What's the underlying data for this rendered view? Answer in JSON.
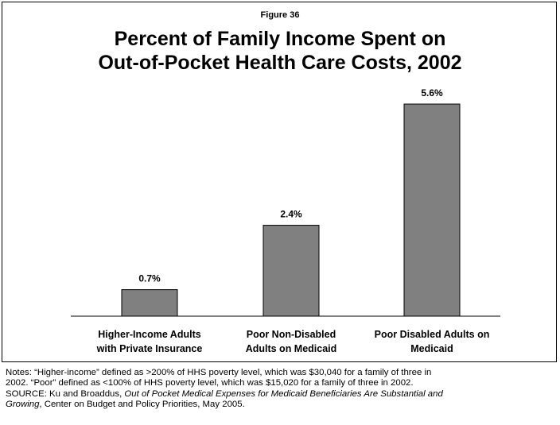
{
  "figure_label": "Figure 36",
  "title_line1": "Percent of Family Income Spent on",
  "title_line2": "Out-of-Pocket Health Care Costs, 2002",
  "notes": {
    "line1": "Notes: “Higher-income” defined as >200% of HHS poverty level, which was $30,040 for a family of three in",
    "line2": "2002. “Poor” defined as <100% of HHS poverty level, which was $15,020 for a family of three in 2002.",
    "source_prefix": "SOURCE:  Ku and Broaddus, ",
    "source_italic1": "Out of Pocket Medical Expenses for Medicaid Beneficiaries Are Substantial and",
    "source_italic2": "Growing",
    "source_suffix": ", Center on Budget and Policy Priorities, May 2005."
  },
  "chart_data": {
    "type": "bar",
    "categories": [
      [
        "Higher-Income Adults",
        "with Private Insurance"
      ],
      [
        "Poor Non-Disabled",
        "Adults on Medicaid"
      ],
      [
        "Poor Disabled Adults on",
        "Medicaid"
      ]
    ],
    "values": [
      0.7,
      2.4,
      5.6
    ],
    "value_labels": [
      "0.7%",
      "2.4%",
      "5.6%"
    ],
    "ylim": [
      0,
      5.6
    ],
    "bar_color": "#808080",
    "grid": false,
    "legend": "none"
  }
}
